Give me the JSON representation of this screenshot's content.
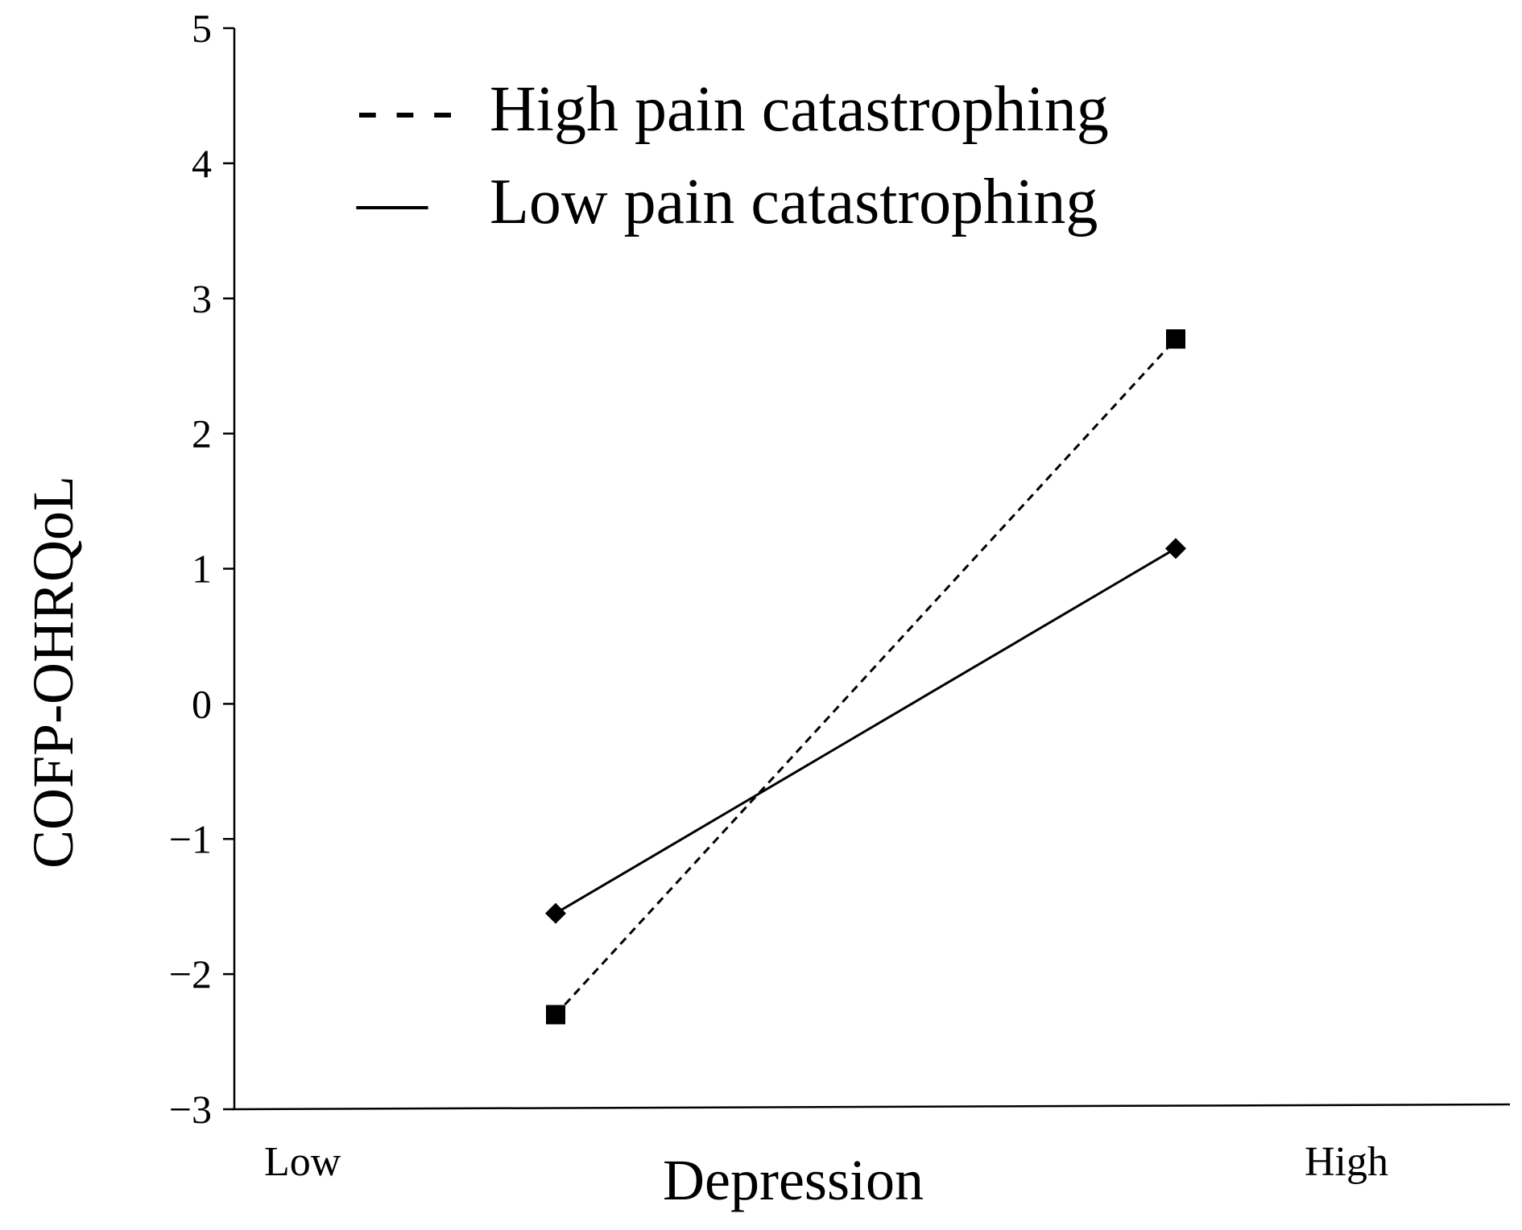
{
  "chart_data": {
    "type": "line",
    "title": "",
    "xlabel": "Depression",
    "ylabel": "COFP-OHRQoL",
    "ylim": [
      -3,
      5
    ],
    "yticks": [
      5,
      4,
      3,
      2,
      1,
      0,
      -1,
      -2,
      -3
    ],
    "ytick_labels": [
      "5",
      "4",
      "3",
      "2",
      "1",
      "0",
      "−1",
      "−2",
      "−3"
    ],
    "x_end_labels": {
      "low": "Low",
      "high": "High"
    },
    "categories": [
      "Low",
      "High"
    ],
    "x_positions": [
      -1,
      1
    ],
    "series": [
      {
        "name": "High pain catastrophing",
        "values": [
          -2.3,
          2.7
        ],
        "line_style": "dashed",
        "marker": "square",
        "legend_symbol": "- - -"
      },
      {
        "name": "Low pain catastrophing",
        "values": [
          -1.55,
          1.15
        ],
        "line_style": "solid",
        "marker": "diamond",
        "legend_symbol": "—"
      }
    ],
    "legend_position": "top-left",
    "grid": false,
    "colors": {
      "ink": "#000000",
      "background": "#ffffff"
    }
  }
}
